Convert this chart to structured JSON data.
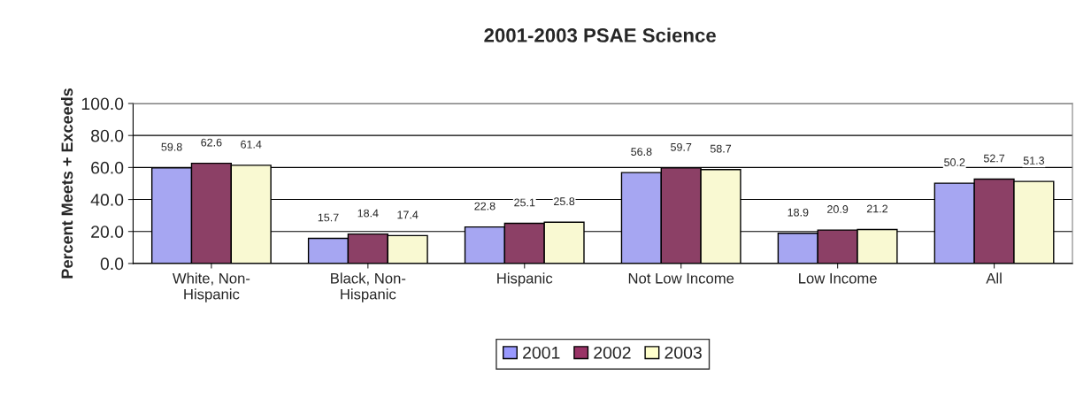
{
  "chart_data": {
    "type": "bar",
    "title": "2001-2003 PSAE Science",
    "ylabel": "Percent Meets + Exceeds",
    "categories": [
      "White, Non-\nHispanic",
      "Black, Non-\nHispanic",
      "Hispanic",
      "Not Low Income",
      "Low Income",
      "All"
    ],
    "series": [
      {
        "name": "2001",
        "color": "#9999ff",
        "values": [
          59.8,
          15.7,
          22.8,
          56.8,
          18.9,
          50.2
        ]
      },
      {
        "name": "2002",
        "color": "#993366",
        "values": [
          62.6,
          18.4,
          25.1,
          59.7,
          20.9,
          52.7
        ]
      },
      {
        "name": "2003",
        "color": "#ffffcc",
        "values": [
          61.4,
          17.4,
          25.8,
          58.7,
          21.2,
          51.3
        ]
      }
    ],
    "ylim": [
      0,
      100
    ],
    "yticks": [
      {
        "value": 0,
        "label": "0.0"
      },
      {
        "value": 20,
        "label": "20.0"
      },
      {
        "value": 40,
        "label": "40.0"
      },
      {
        "value": 60,
        "label": "60.0"
      },
      {
        "value": 80,
        "label": "80.0"
      },
      {
        "value": 100,
        "label": "100.0"
      }
    ],
    "grid": "y",
    "legend": "bottom",
    "data_labels": true
  }
}
